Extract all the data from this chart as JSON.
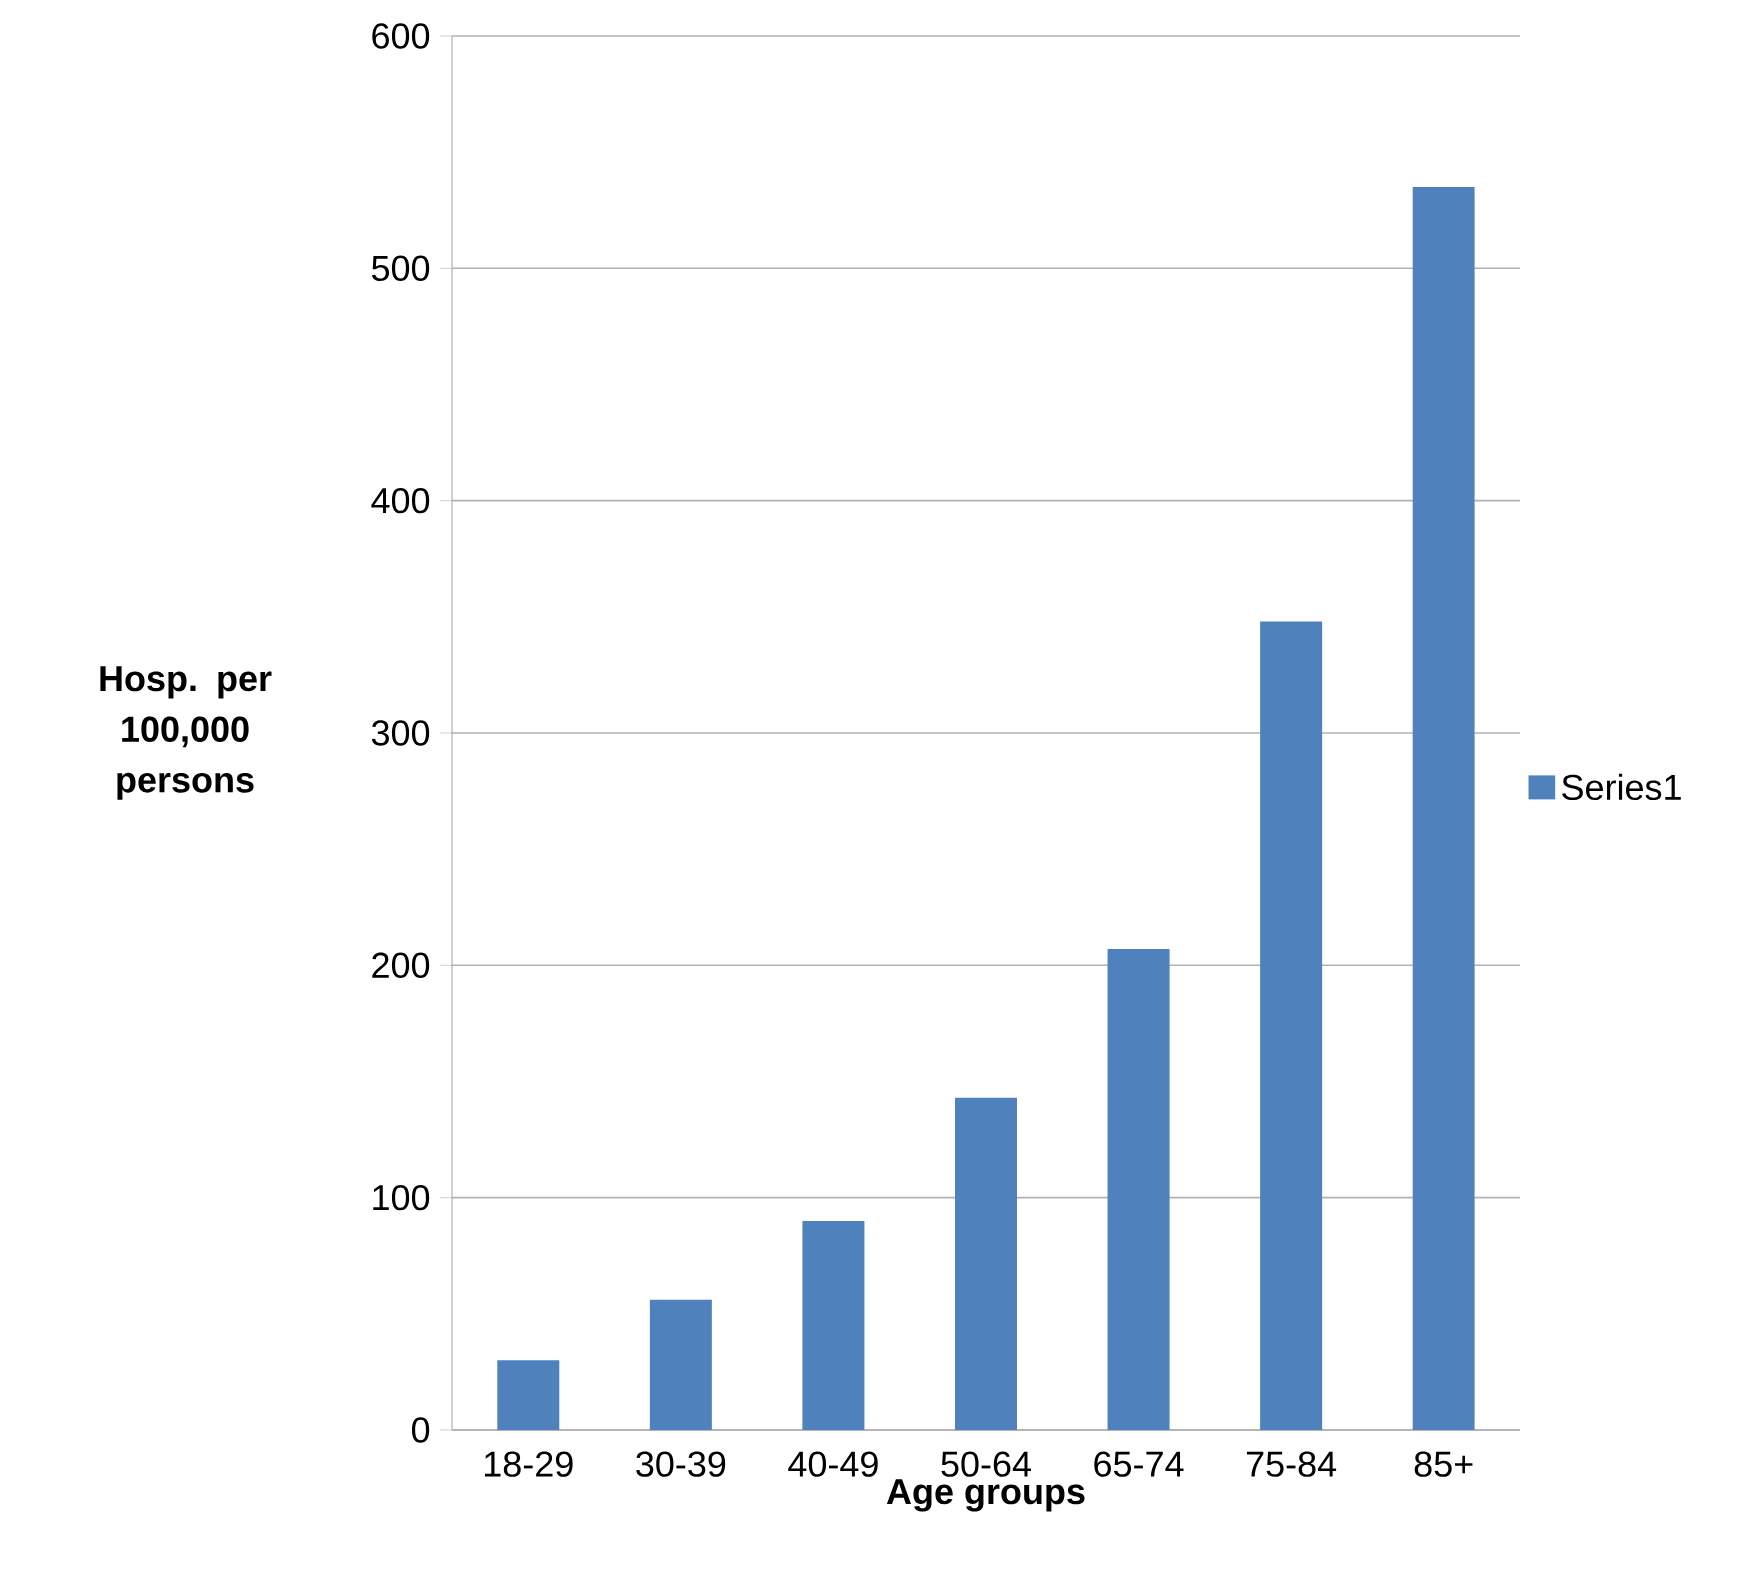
{
  "chart_data": {
    "type": "bar",
    "xlabel": "Age groups",
    "ylabel": "Hosp. per 100,000 persons",
    "categories": [
      "18-29",
      "30-39",
      "40-49",
      "50-64",
      "65-74",
      "75-84",
      "85+"
    ],
    "series": [
      {
        "name": "Series1",
        "color": "#4f81bd",
        "values": [
          30,
          56,
          90,
          143,
          207,
          348,
          535
        ]
      }
    ],
    "ylim": [
      0,
      600
    ],
    "yticks": [
      0,
      100,
      200,
      300,
      400,
      500,
      600
    ],
    "grid": "y",
    "legend": "right"
  }
}
